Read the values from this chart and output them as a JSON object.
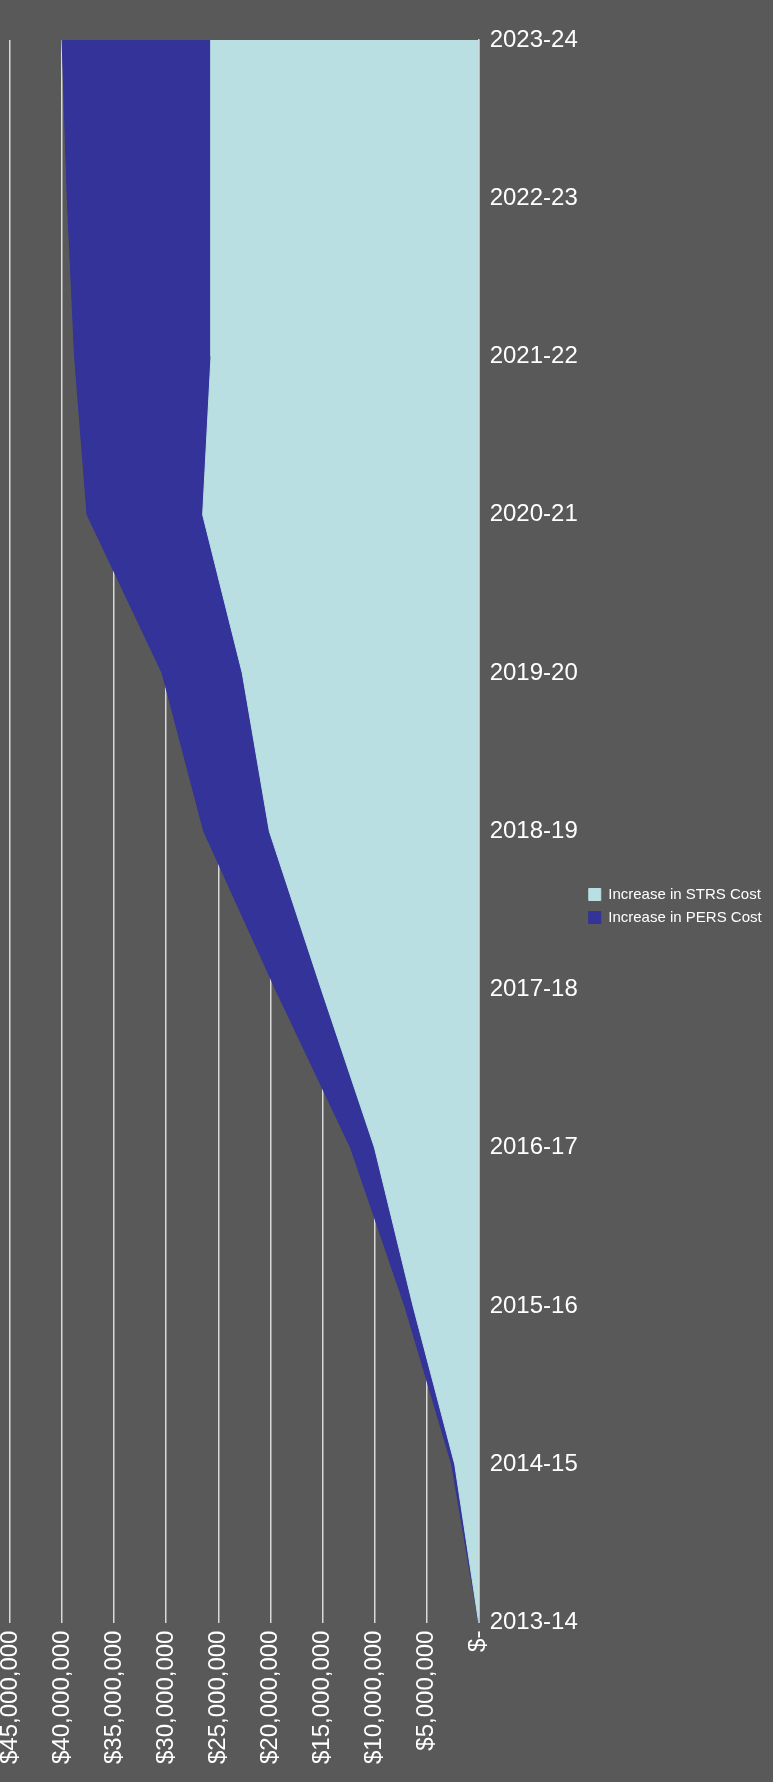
{
  "chart_data": {
    "type": "area",
    "stacked": true,
    "orientation": "horizontal",
    "categories": [
      "2023-24",
      "2022-23",
      "2021-22",
      "2020-21",
      "2019-20",
      "2018-19",
      "2017-18",
      "2016-17",
      "2015-16",
      "2014-15",
      "2013-14"
    ],
    "series": [
      {
        "name": "Increase in STRS Cost",
        "color": "#b9dfe3",
        "values": [
          25700000,
          25700000,
          25700000,
          26500000,
          22700000,
          20100000,
          15100000,
          10000000,
          6300000,
          2300000,
          0
        ]
      },
      {
        "name": "Increase in PERS Cost",
        "color": "#333399",
        "values": [
          14300000,
          13800000,
          13100000,
          11100000,
          7700000,
          6300000,
          4400000,
          2300000,
          800000,
          300000,
          0
        ]
      }
    ],
    "xlim": [
      45000000,
      0
    ],
    "xticks": [
      {
        "value": 0,
        "label": "$-"
      },
      {
        "value": 5000000,
        "label": "$5,000,000"
      },
      {
        "value": 10000000,
        "label": "$10,000,000"
      },
      {
        "value": 15000000,
        "label": "$15,000,000"
      },
      {
        "value": 20000000,
        "label": "$20,000,000"
      },
      {
        "value": 25000000,
        "label": "$25,000,000"
      },
      {
        "value": 30000000,
        "label": "$30,000,000"
      },
      {
        "value": 35000000,
        "label": "$35,000,000"
      },
      {
        "value": 40000000,
        "label": "$40,000,000"
      },
      {
        "value": 45000000,
        "label": "$45,000,000"
      }
    ],
    "grid": "x",
    "legend": "right",
    "marker": "none"
  }
}
